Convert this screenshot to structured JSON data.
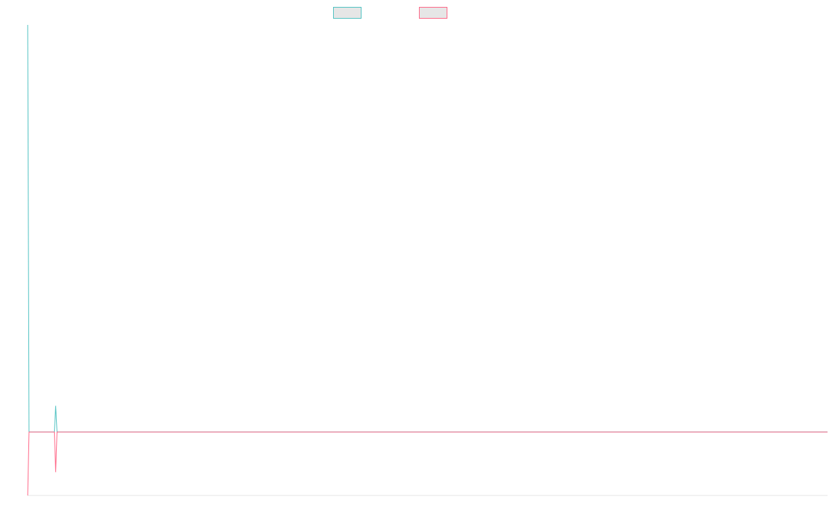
{
  "chart_data": {
    "type": "line",
    "title": "",
    "xlabel": "",
    "ylabel": "",
    "grid": false,
    "legend_position": "top-center",
    "legend_has_labels": false,
    "series": [
      {
        "color": "#4bc0c0",
        "fill": "#e6e6e6",
        "points": [
          {
            "x": 0,
            "y": 100
          },
          {
            "x": 0.05,
            "y": 13.5
          },
          {
            "x": 1,
            "y": 13.5
          },
          {
            "x": 1.05,
            "y": 19
          },
          {
            "x": 1.1,
            "y": 13.5
          },
          {
            "x": 30,
            "y": 13.5
          }
        ]
      },
      {
        "color": "#ff6384",
        "fill": "#e6e6e6",
        "points": [
          {
            "x": 0,
            "y": 0
          },
          {
            "x": 0.05,
            "y": 13.5
          },
          {
            "x": 1,
            "y": 13.5
          },
          {
            "x": 1.05,
            "y": 5
          },
          {
            "x": 1.1,
            "y": 13.5
          },
          {
            "x": 30,
            "y": 13.5
          }
        ]
      }
    ],
    "xlim": [
      0,
      30
    ],
    "ylim": [
      0,
      100
    ]
  }
}
